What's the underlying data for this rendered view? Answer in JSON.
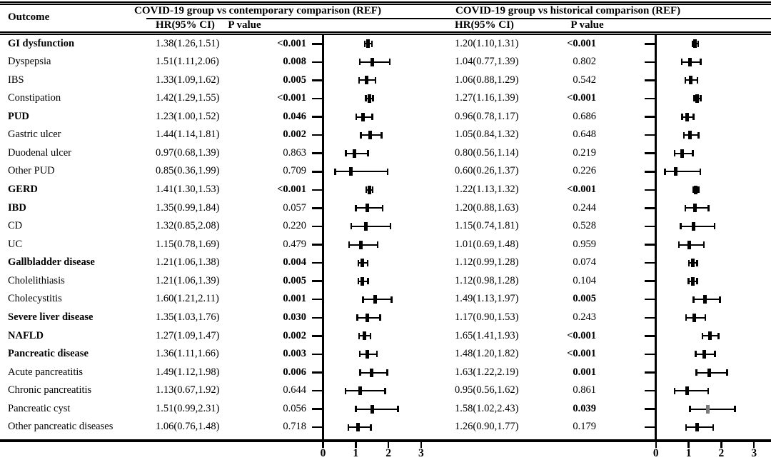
{
  "colors": {
    "foreground": "#000000",
    "background": "#ffffff",
    "muted_marker": "#7a7a7a"
  },
  "table": {
    "outcome_header": "Outcome",
    "groups": [
      {
        "title": "COVID-19 group vs contemporary comparison (REF)",
        "hr_header": "HR(95% CI)",
        "p_header": "P value"
      },
      {
        "title": "COVID-19 group vs historical comparison (REF)",
        "hr_header": "HR(95% CI)",
        "p_header": "P value"
      }
    ]
  },
  "chart_data": {
    "type": "scatter",
    "subtype": "forest-plot",
    "title": "",
    "xlabel": "",
    "ylabel": "",
    "axis_ticks": [
      0,
      1,
      2,
      3
    ],
    "xlim": [
      0,
      3.3
    ],
    "grid": false,
    "legend": "none",
    "rows": [
      {
        "outcome": "GI dysfunction",
        "bold": true,
        "contemporary": {
          "hr_text": "1.38(1.26,1.51)",
          "p": "<0.001",
          "p_bold": true,
          "hr": 1.38,
          "lo": 1.26,
          "hi": 1.51
        },
        "historical": {
          "hr_text": "1.20(1.10,1.31)",
          "p": "<0.001",
          "p_bold": true,
          "hr": 1.2,
          "lo": 1.1,
          "hi": 1.31
        }
      },
      {
        "outcome": "Dyspepsia",
        "bold": false,
        "contemporary": {
          "hr_text": "1.51(1.11,2.06)",
          "p": "0.008",
          "p_bold": true,
          "hr": 1.51,
          "lo": 1.11,
          "hi": 2.06
        },
        "historical": {
          "hr_text": "1.04(0.77,1.39)",
          "p": "0.802",
          "p_bold": false,
          "hr": 1.04,
          "lo": 0.77,
          "hi": 1.39
        }
      },
      {
        "outcome": "IBS",
        "bold": false,
        "contemporary": {
          "hr_text": "1.33(1.09,1.62)",
          "p": "0.005",
          "p_bold": true,
          "hr": 1.33,
          "lo": 1.09,
          "hi": 1.62
        },
        "historical": {
          "hr_text": "1.06(0.88,1.29)",
          "p": "0.542",
          "p_bold": false,
          "hr": 1.06,
          "lo": 0.88,
          "hi": 1.29
        }
      },
      {
        "outcome": "Constipation",
        "bold": false,
        "contemporary": {
          "hr_text": "1.42(1.29,1.55)",
          "p": "<0.001",
          "p_bold": true,
          "hr": 1.42,
          "lo": 1.29,
          "hi": 1.55
        },
        "historical": {
          "hr_text": "1.27(1.16,1.39)",
          "p": "<0.001",
          "p_bold": true,
          "hr": 1.27,
          "lo": 1.16,
          "hi": 1.39
        }
      },
      {
        "outcome": "PUD",
        "bold": true,
        "contemporary": {
          "hr_text": "1.23(1.00,1.52)",
          "p": "0.046",
          "p_bold": true,
          "hr": 1.23,
          "lo": 1.0,
          "hi": 1.52
        },
        "historical": {
          "hr_text": "0.96(0.78,1.17)",
          "p": "0.686",
          "p_bold": false,
          "hr": 0.96,
          "lo": 0.78,
          "hi": 1.17
        }
      },
      {
        "outcome": "Gastric ulcer",
        "bold": false,
        "contemporary": {
          "hr_text": "1.44(1.14,1.81)",
          "p": "0.002",
          "p_bold": true,
          "hr": 1.44,
          "lo": 1.14,
          "hi": 1.81
        },
        "historical": {
          "hr_text": "1.05(0.84,1.32)",
          "p": "0.648",
          "p_bold": false,
          "hr": 1.05,
          "lo": 0.84,
          "hi": 1.32
        }
      },
      {
        "outcome": "Duodenal ulcer",
        "bold": false,
        "contemporary": {
          "hr_text": "0.97(0.68,1.39)",
          "p": "0.863",
          "p_bold": false,
          "hr": 0.97,
          "lo": 0.68,
          "hi": 1.39
        },
        "historical": {
          "hr_text": "0.80(0.56,1.14)",
          "p": "0.219",
          "p_bold": false,
          "hr": 0.8,
          "lo": 0.56,
          "hi": 1.14
        }
      },
      {
        "outcome": "Other PUD",
        "bold": false,
        "contemporary": {
          "hr_text": "0.85(0.36,1.99)",
          "p": "0.709",
          "p_bold": false,
          "hr": 0.85,
          "lo": 0.36,
          "hi": 1.99
        },
        "historical": {
          "hr_text": "0.60(0.26,1.37)",
          "p": "0.226",
          "p_bold": false,
          "hr": 0.6,
          "lo": 0.26,
          "hi": 1.37
        }
      },
      {
        "outcome": "GERD",
        "bold": true,
        "contemporary": {
          "hr_text": "1.41(1.30,1.53)",
          "p": "<0.001",
          "p_bold": true,
          "hr": 1.41,
          "lo": 1.3,
          "hi": 1.53
        },
        "historical": {
          "hr_text": "1.22(1.13,1.32)",
          "p": "<0.001",
          "p_bold": true,
          "hr": 1.22,
          "lo": 1.13,
          "hi": 1.32
        }
      },
      {
        "outcome": "IBD",
        "bold": true,
        "contemporary": {
          "hr_text": "1.35(0.99,1.84)",
          "p": "0.057",
          "p_bold": false,
          "hr": 1.35,
          "lo": 0.99,
          "hi": 1.84
        },
        "historical": {
          "hr_text": "1.20(0.88,1.63)",
          "p": "0.244",
          "p_bold": false,
          "hr": 1.2,
          "lo": 0.88,
          "hi": 1.63
        }
      },
      {
        "outcome": "CD",
        "bold": false,
        "contemporary": {
          "hr_text": "1.32(0.85,2.08)",
          "p": "0.220",
          "p_bold": false,
          "hr": 1.32,
          "lo": 0.85,
          "hi": 2.08
        },
        "historical": {
          "hr_text": "1.15(0.74,1.81)",
          "p": "0.528",
          "p_bold": false,
          "hr": 1.15,
          "lo": 0.74,
          "hi": 1.81
        }
      },
      {
        "outcome": "UC",
        "bold": false,
        "contemporary": {
          "hr_text": "1.15(0.78,1.69)",
          "p": "0.479",
          "p_bold": false,
          "hr": 1.15,
          "lo": 0.78,
          "hi": 1.69
        },
        "historical": {
          "hr_text": "1.01(0.69,1.48)",
          "p": "0.959",
          "p_bold": false,
          "hr": 1.01,
          "lo": 0.69,
          "hi": 1.48
        }
      },
      {
        "outcome": "Gallbladder disease",
        "bold": true,
        "contemporary": {
          "hr_text": "1.21(1.06,1.38)",
          "p": "0.004",
          "p_bold": true,
          "hr": 1.21,
          "lo": 1.06,
          "hi": 1.38
        },
        "historical": {
          "hr_text": "1.12(0.99,1.28)",
          "p": "0.074",
          "p_bold": false,
          "hr": 1.12,
          "lo": 0.99,
          "hi": 1.28
        }
      },
      {
        "outcome": "Cholelithiasis",
        "bold": false,
        "contemporary": {
          "hr_text": "1.21(1.06,1.39)",
          "p": "0.005",
          "p_bold": true,
          "hr": 1.21,
          "lo": 1.06,
          "hi": 1.39
        },
        "historical": {
          "hr_text": "1.12(0.98,1.28)",
          "p": "0.104",
          "p_bold": false,
          "hr": 1.12,
          "lo": 0.98,
          "hi": 1.28
        }
      },
      {
        "outcome": "Cholecystitis",
        "bold": false,
        "contemporary": {
          "hr_text": "1.60(1.21,2.11)",
          "p": "0.001",
          "p_bold": true,
          "hr": 1.6,
          "lo": 1.21,
          "hi": 2.11
        },
        "historical": {
          "hr_text": "1.49(1.13,1.97)",
          "p": "0.005",
          "p_bold": true,
          "hr": 1.49,
          "lo": 1.13,
          "hi": 1.97
        }
      },
      {
        "outcome": "Severe liver disease",
        "bold": true,
        "contemporary": {
          "hr_text": "1.35(1.03,1.76)",
          "p": "0.030",
          "p_bold": true,
          "hr": 1.35,
          "lo": 1.03,
          "hi": 1.76
        },
        "historical": {
          "hr_text": "1.17(0.90,1.53)",
          "p": "0.243",
          "p_bold": false,
          "hr": 1.17,
          "lo": 0.9,
          "hi": 1.53
        }
      },
      {
        "outcome": "NAFLD",
        "bold": true,
        "contemporary": {
          "hr_text": "1.27(1.09,1.47)",
          "p": "0.002",
          "p_bold": true,
          "hr": 1.27,
          "lo": 1.09,
          "hi": 1.47
        },
        "historical": {
          "hr_text": "1.65(1.41,1.93)",
          "p": "<0.001",
          "p_bold": true,
          "hr": 1.65,
          "lo": 1.41,
          "hi": 1.93
        }
      },
      {
        "outcome": "Pancreatic disease",
        "bold": true,
        "contemporary": {
          "hr_text": "1.36(1.11,1.66)",
          "p": "0.003",
          "p_bold": true,
          "hr": 1.36,
          "lo": 1.11,
          "hi": 1.66
        },
        "historical": {
          "hr_text": "1.48(1.20,1.82)",
          "p": "<0.001",
          "p_bold": true,
          "hr": 1.48,
          "lo": 1.2,
          "hi": 1.82
        }
      },
      {
        "outcome": "Acute pancreatitis",
        "bold": false,
        "contemporary": {
          "hr_text": "1.49(1.12,1.98)",
          "p": "0.006",
          "p_bold": true,
          "hr": 1.49,
          "lo": 1.12,
          "hi": 1.98
        },
        "historical": {
          "hr_text": "1.63(1.22,2.19)",
          "p": "0.001",
          "p_bold": true,
          "hr": 1.63,
          "lo": 1.22,
          "hi": 2.19
        }
      },
      {
        "outcome": "Chronic pancreatitis",
        "bold": false,
        "contemporary": {
          "hr_text": "1.13(0.67,1.92)",
          "p": "0.644",
          "p_bold": false,
          "hr": 1.13,
          "lo": 0.67,
          "hi": 1.92
        },
        "historical": {
          "hr_text": "0.95(0.56,1.62)",
          "p": "0.861",
          "p_bold": false,
          "hr": 0.95,
          "lo": 0.56,
          "hi": 1.62
        }
      },
      {
        "outcome": "Pancreatic cyst",
        "bold": false,
        "contemporary": {
          "hr_text": "1.51(0.99,2.31)",
          "p": "0.056",
          "p_bold": false,
          "hr": 1.51,
          "lo": 0.99,
          "hi": 2.31
        },
        "historical": {
          "hr_text": "1.58(1.02,2.43)",
          "p": "0.039",
          "p_bold": true,
          "hr": 1.58,
          "lo": 1.02,
          "hi": 2.43,
          "muted_marker": true
        }
      },
      {
        "outcome": "Other pancreatic diseases",
        "bold": false,
        "contemporary": {
          "hr_text": "1.06(0.76,1.48)",
          "p": "0.718",
          "p_bold": false,
          "hr": 1.06,
          "lo": 0.76,
          "hi": 1.48
        },
        "historical": {
          "hr_text": "1.26(0.90,1.77)",
          "p": "0.179",
          "p_bold": false,
          "hr": 1.26,
          "lo": 0.9,
          "hi": 1.77
        }
      }
    ]
  }
}
